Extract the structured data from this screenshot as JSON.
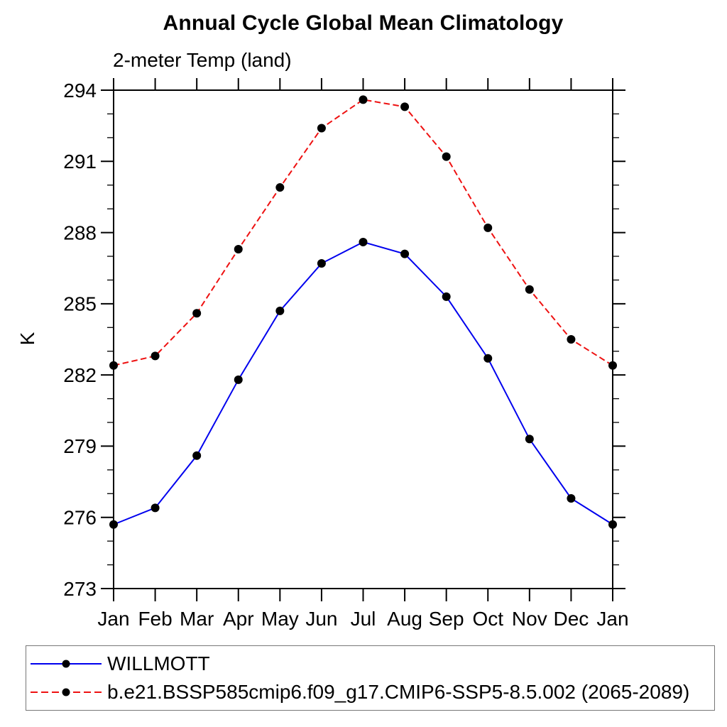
{
  "chart": {
    "title": "Annual Cycle Global Mean Climatology",
    "subtitle": "2-meter Temp (land)",
    "y_axis_label": "K"
  },
  "chart_data": {
    "type": "line",
    "title": "Annual Cycle Global Mean Climatology",
    "subtitle": "2-meter Temp (land)",
    "xlabel": "",
    "ylabel": "K",
    "categories": [
      "Jan",
      "Feb",
      "Mar",
      "Apr",
      "May",
      "Jun",
      "Jul",
      "Aug",
      "Sep",
      "Oct",
      "Nov",
      "Dec",
      "Jan"
    ],
    "ylim": [
      273,
      294
    ],
    "y_major_ticks": [
      273,
      276,
      279,
      282,
      285,
      288,
      291,
      294
    ],
    "y_minor_step": 1,
    "grid": false,
    "legend_position": "bottom",
    "marker": {
      "shape": "circle",
      "color": "#000000",
      "radius": 6
    },
    "series": [
      {
        "name": "WILLMOTT",
        "color": "#0000ee",
        "line_style": "solid",
        "values": [
          275.7,
          276.4,
          278.6,
          281.8,
          284.7,
          286.7,
          287.6,
          287.1,
          285.3,
          282.7,
          279.3,
          276.8,
          275.7
        ]
      },
      {
        "name": "b.e21.BSSP585cmip6.f09_g17.CMIP6-SSP5-8.5.002 (2065-2089)",
        "color": "#ee1111",
        "line_style": "dashed",
        "values": [
          282.4,
          282.8,
          284.6,
          287.3,
          289.9,
          292.4,
          293.6,
          293.3,
          291.2,
          288.2,
          285.6,
          283.5,
          282.4
        ]
      }
    ]
  }
}
